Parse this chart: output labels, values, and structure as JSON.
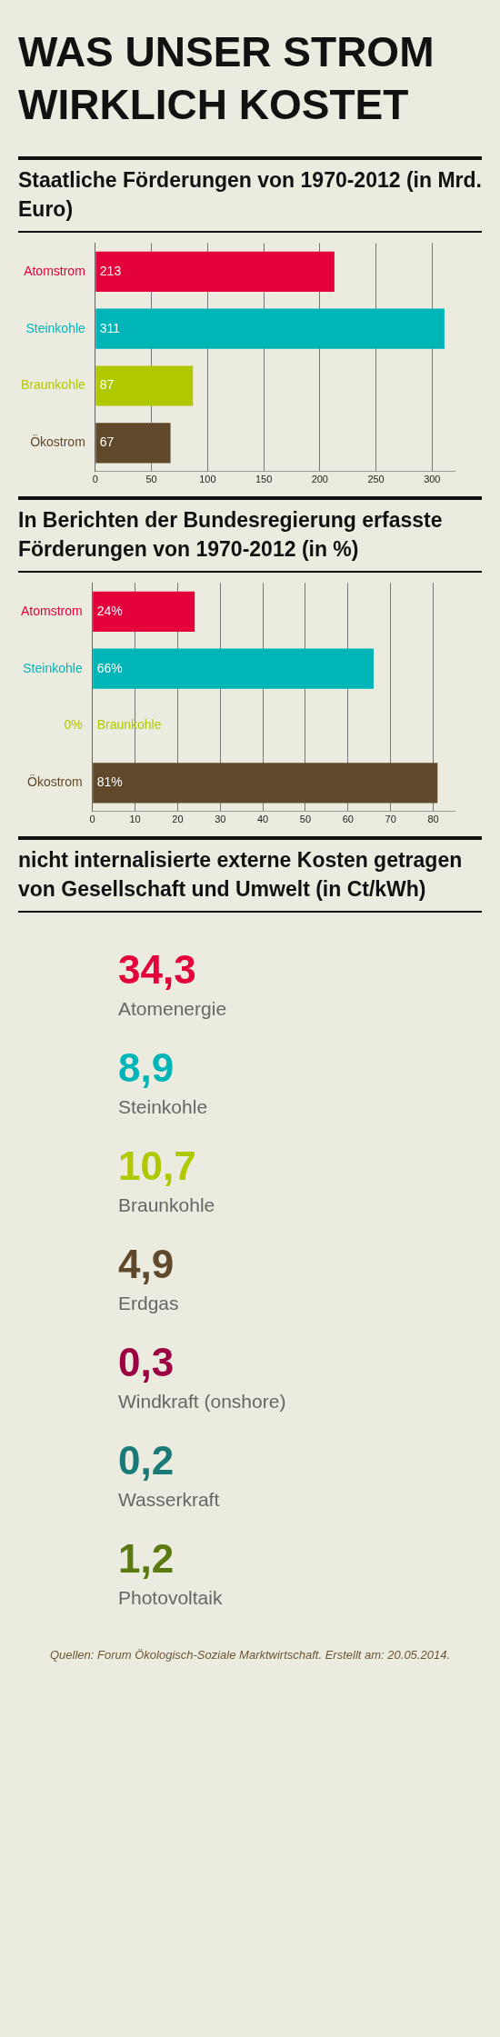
{
  "chart_data": [
    {
      "type": "bar",
      "orientation": "horizontal",
      "title": "WAS UNSER STROM WIRKLICH KOSTET",
      "subtitle": "Staatliche Förderungen von 1970-2012 (in Mrd. Euro)",
      "categories": [
        "Atomstrom",
        "Steinkohle",
        "Braunkohle",
        "Ökostrom"
      ],
      "values": [
        213,
        311,
        87,
        67
      ],
      "colors": [
        "#e4003a",
        "#00b5b8",
        "#b0c800",
        "#60482a"
      ],
      "xlim": [
        0,
        320
      ],
      "xticks": [
        0,
        50,
        100,
        150,
        200,
        250,
        300
      ],
      "grid": "x",
      "data_labels": true
    },
    {
      "type": "bar",
      "orientation": "horizontal",
      "title": "In Berichten der Bundesregierung erfasste Förderungen von 1970-2012 (in %)",
      "categories": [
        "Atomstrom",
        "Steinkohle",
        "Braunkohle",
        "Ökostrom"
      ],
      "values": [
        24,
        66,
        0,
        81
      ],
      "value_labels": [
        "24%",
        "66%",
        "0%",
        "81%"
      ],
      "colors": [
        "#e4003a",
        "#00b5b8",
        "#b0c800",
        "#60482a"
      ],
      "xlim": [
        0,
        85
      ],
      "xticks": [
        0,
        10,
        20,
        30,
        40,
        50,
        60,
        70,
        80
      ],
      "grid": "x"
    },
    {
      "type": "other",
      "title": "nicht internalisierte externe Kosten getragen von Gesellschaft und Umwelt (in Ct/kWh)",
      "categories": [
        "Atomenergie",
        "Steinkohle",
        "Braunkohle",
        "Erdgas",
        "Windkraft (onshore)",
        "Wasserkraft",
        "Photovoltaik"
      ],
      "values": [
        34.3,
        8.9,
        10.7,
        4.9,
        0.3,
        0.2,
        1.2
      ],
      "value_labels": [
        "34,3",
        "8,9",
        "10,7",
        "4,9",
        "0,3",
        "0,2",
        "1,2"
      ],
      "colors": [
        "#e4003a",
        "#00b5b8",
        "#b0c800",
        "#60482a",
        "#9c0040",
        "#1a7a78",
        "#5a7a10"
      ],
      "annotations": [
        "Quellen: Forum Ökologisch-Soziale Marktwirtschaft. Erstellt am: 20.05.2014."
      ]
    }
  ]
}
